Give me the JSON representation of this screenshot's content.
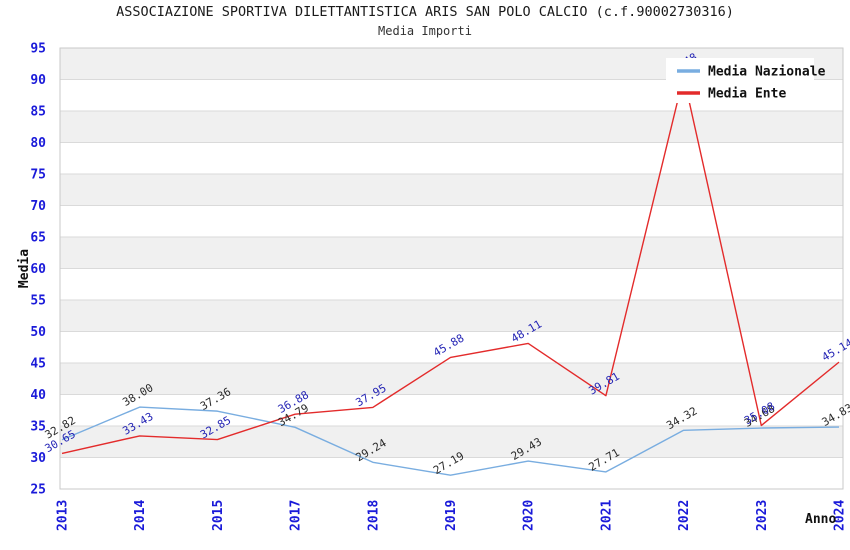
{
  "title": "ASSOCIAZIONE SPORTIVA DILETTANTISTICA ARIS SAN POLO CALCIO (c.f.90002730316)",
  "subtitle": "Media Importi",
  "chart_data": {
    "type": "line",
    "title": "ASSOCIAZIONE SPORTIVA DILETTANTISTICA ARIS SAN POLO CALCIO (c.f.90002730316)",
    "subtitle": "Media Importi",
    "xlabel": "Anno",
    "ylabel": "Media",
    "categories": [
      "2013",
      "2014",
      "2015",
      "2017",
      "2018",
      "2019",
      "2020",
      "2021",
      "2022",
      "2023",
      "2024"
    ],
    "series": [
      {
        "name": "Media Nazionale",
        "line_color": "#79ADE0",
        "label_color": "#2b2b2b",
        "values": [
          32.82,
          38.0,
          37.36,
          34.79,
          29.24,
          27.19,
          29.43,
          27.71,
          34.32,
          34.68,
          34.83
        ]
      },
      {
        "name": "Media Ente",
        "line_color": "#E32B2B",
        "label_color": "#2525B5",
        "values": [
          30.65,
          33.43,
          32.85,
          36.88,
          37.95,
          45.88,
          48.11,
          39.81,
          90.48,
          35.08,
          45.14
        ]
      }
    ],
    "ylim": [
      25,
      95
    ],
    "y_tick_step": 5,
    "grid": "horizontal gridlines every 5 units, alternating gray/white bands of 5 units",
    "legend_position": "top-right",
    "notes": "2022 Media Ente data label is mostly hidden behind the legend box"
  },
  "style_colors": {
    "tick_label_blue": "#1A1AD9",
    "band_gray": "#F0F0F0",
    "gridline": "#DADADA",
    "plot_border": "#C9C9C9",
    "axis_title_color": "#111111",
    "legend_bg": "#FFFFFF",
    "legend_text": "#111111"
  }
}
